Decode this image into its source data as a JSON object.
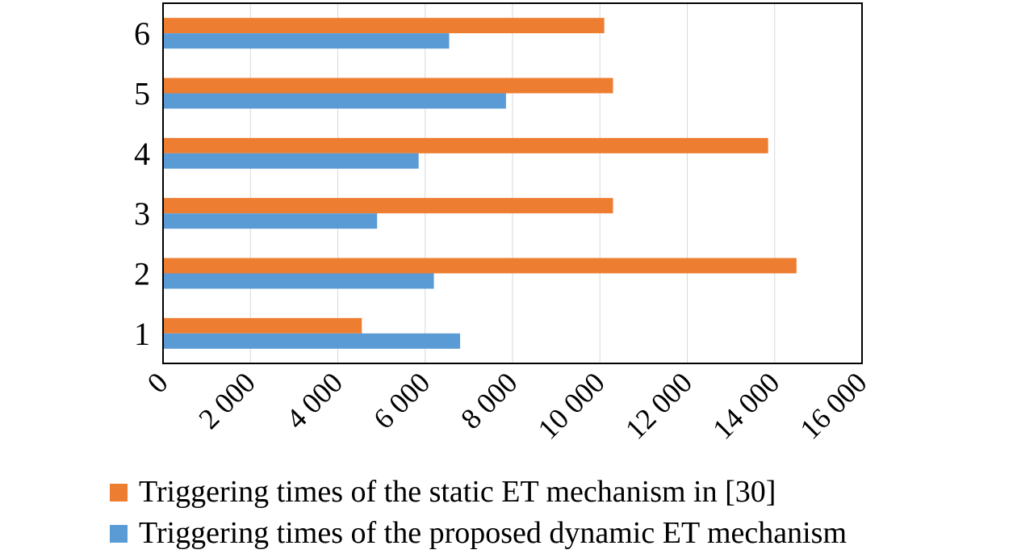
{
  "chart_data": {
    "type": "bar",
    "orientation": "horizontal",
    "categories": [
      "1",
      "2",
      "3",
      "4",
      "5",
      "6"
    ],
    "series": [
      {
        "name": "Triggering times of the static ET mechanism in [30]",
        "color": "#ED7D31",
        "values": [
          4550,
          14500,
          10300,
          13850,
          10300,
          10100
        ]
      },
      {
        "name": "Triggering times of the proposed dynamic ET mechanism",
        "color": "#5B9BD5",
        "values": [
          6800,
          6200,
          4900,
          5850,
          7850,
          6550
        ]
      }
    ],
    "x_ticks": [
      "0",
      "2 000",
      "4 000",
      "6 000",
      "8 000",
      "10 000",
      "12 000",
      "14 000",
      "16 000"
    ],
    "xlim": [
      0,
      16000
    ],
    "xlabel": "",
    "ylabel": "",
    "title": "",
    "grid": "vertical",
    "legend_position": "bottom"
  }
}
